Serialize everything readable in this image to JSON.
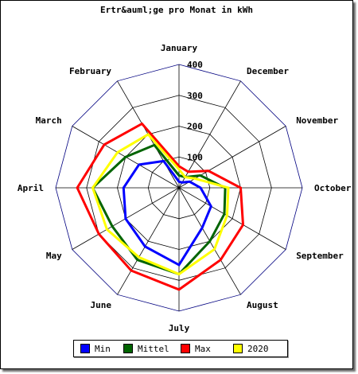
{
  "chart_data": {
    "type": "radar",
    "title": "Ertr&auml;ge pro Monat in kWh",
    "categories": [
      "January",
      "December",
      "November",
      "October",
      "September",
      "August",
      "July",
      "June",
      "May",
      "April",
      "March",
      "February"
    ],
    "radial_ticks": [
      "100",
      "200",
      "300",
      "400"
    ],
    "rmax": 400,
    "series": [
      {
        "name": "Min",
        "color": "#0000ff",
        "values": [
          20,
          20,
          40,
          70,
          120,
          150,
          250,
          220,
          200,
          180,
          150,
          100
        ]
      },
      {
        "name": "Mittel",
        "color": "#006400",
        "values": [
          40,
          40,
          80,
          150,
          170,
          200,
          280,
          270,
          250,
          280,
          200,
          160
        ]
      },
      {
        "name": "Max",
        "color": "#ff0000",
        "values": [
          70,
          60,
          110,
          200,
          240,
          270,
          330,
          310,
          300,
          330,
          280,
          240
        ]
      },
      {
        "name": "2020",
        "color": "#ffff00",
        "values": [
          60,
          40,
          60,
          160,
          180,
          230,
          280,
          260,
          270,
          280,
          230,
          200
        ]
      }
    ],
    "legend_position": "bottom"
  }
}
